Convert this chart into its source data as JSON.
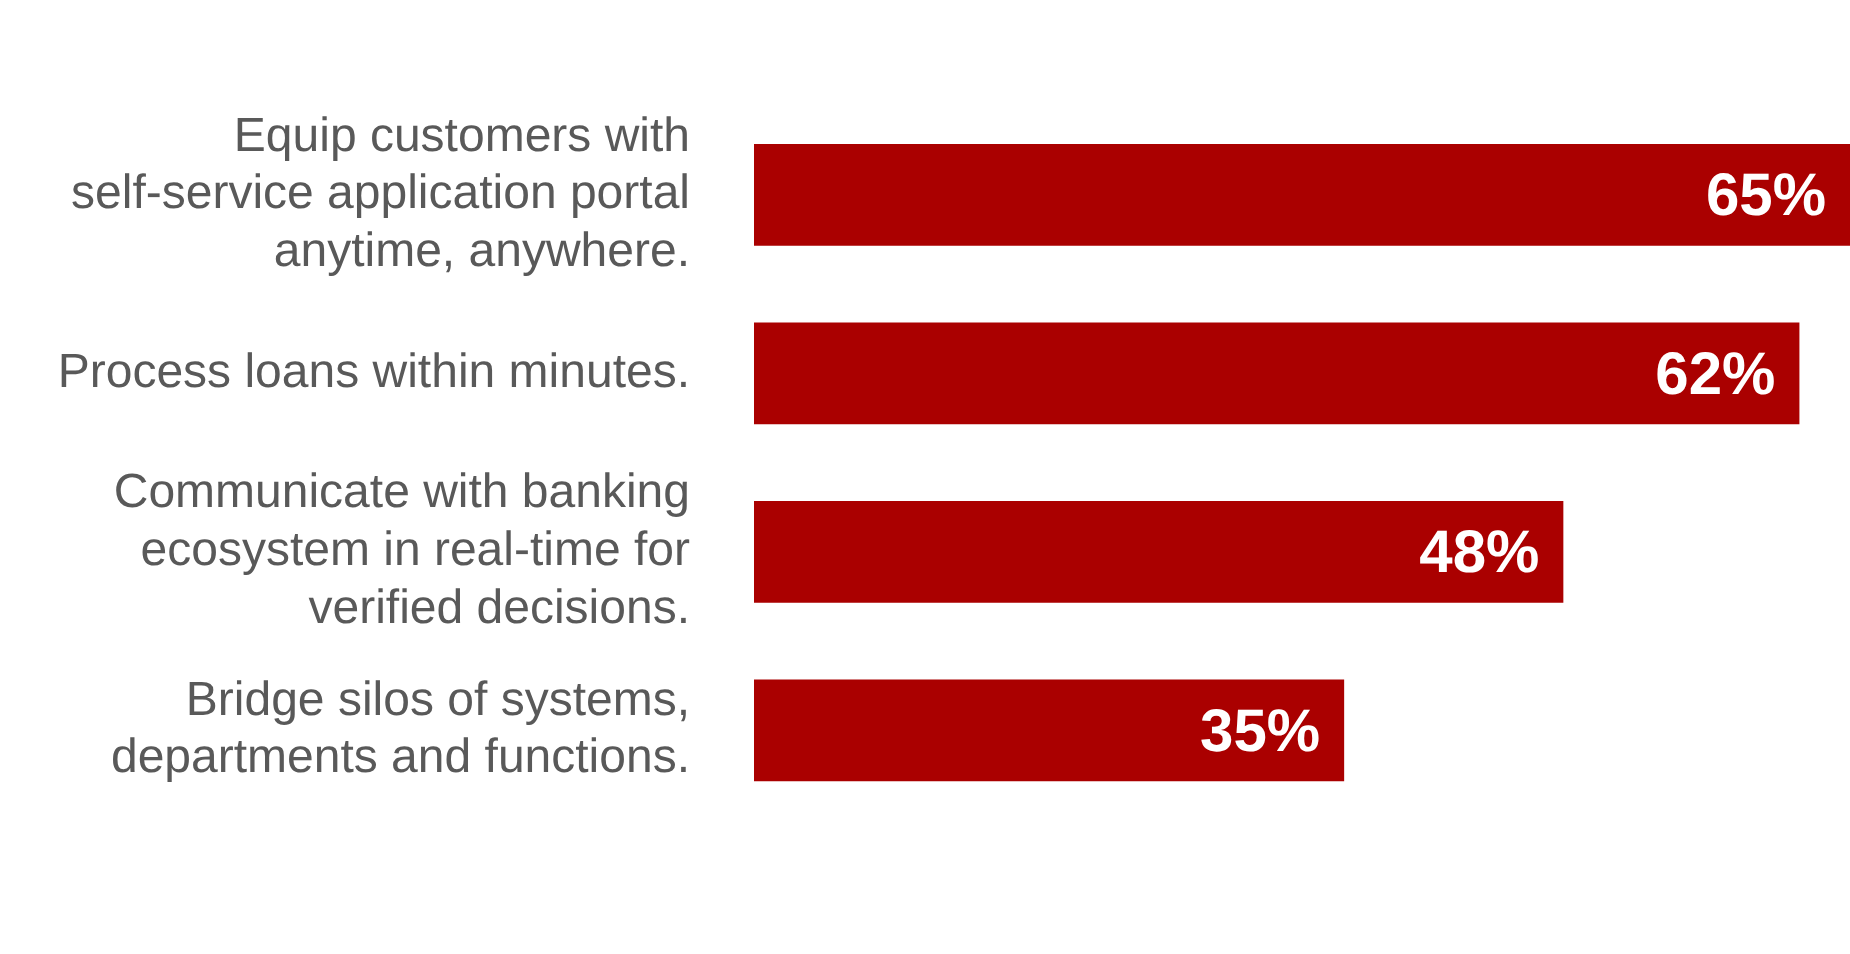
{
  "chart_data": {
    "type": "bar",
    "orientation": "horizontal",
    "categories": [
      "Equip customers with self-service application portal anytime, anywhere.",
      "Process loans within minutes.",
      "Communicate with banking ecosystem in real-time for verified decisions.",
      "Bridge silos of systems, departments and functions."
    ],
    "values": [
      65,
      62,
      48,
      35
    ],
    "value_labels": [
      "65%",
      "62%",
      "48%",
      "35%"
    ],
    "color": "#aa0000"
  }
}
